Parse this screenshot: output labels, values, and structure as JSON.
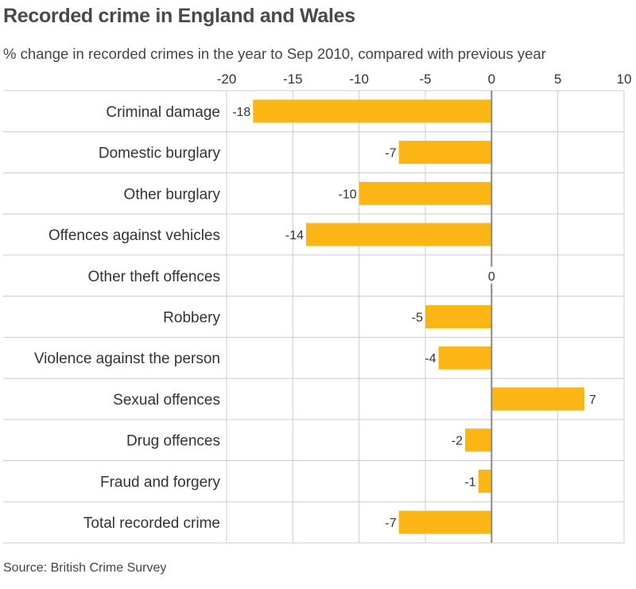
{
  "title": "Recorded crime in England and Wales",
  "subtitle": "% change in recorded crimes in the year to Sep 2010, compared with previous year",
  "source": "Source: British Crime Survey",
  "colors": {
    "bar": "#fbb616",
    "grid": "#cccccc",
    "zero_line": "#888888",
    "text": "#333333"
  },
  "chart_data": {
    "type": "bar",
    "orientation": "horizontal",
    "title": "Recorded crime in England and Wales",
    "subtitle": "% change in recorded crimes in the year to Sep 2010, compared with previous year",
    "xlim": [
      -20,
      10
    ],
    "x_ticks": [
      -20,
      -15,
      -10,
      -5,
      0,
      5,
      10
    ],
    "x_tick_labels": [
      "-20",
      "-15",
      "-10",
      "-5",
      "0",
      "5",
      "10"
    ],
    "grid": true,
    "categories": [
      "Criminal damage",
      "Domestic burglary",
      "Other burglary",
      "Offences against vehicles",
      "Other theft offences",
      "Robbery",
      "Violence against the person",
      "Sexual offences",
      "Drug offences",
      "Fraud and forgery",
      "Total recorded crime"
    ],
    "values": [
      -18,
      -7,
      -10,
      -14,
      0,
      -5,
      -4,
      7,
      -2,
      -1,
      -7
    ],
    "value_labels": [
      "-18",
      "-7",
      "-10",
      "-14",
      "0",
      "-5",
      "-4",
      "7",
      "-2",
      "-1",
      "-7"
    ]
  }
}
